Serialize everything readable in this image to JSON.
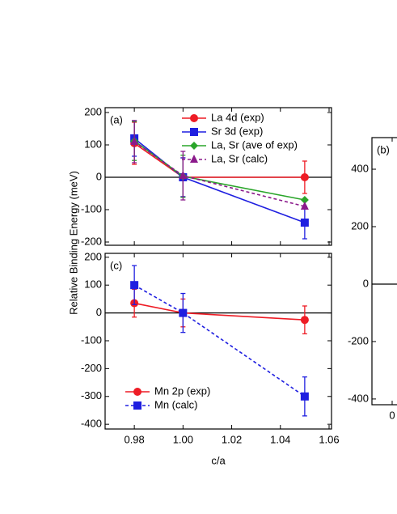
{
  "chart_data": [
    {
      "type": "line",
      "panel_label": "(a)",
      "ylabel": "Relative Binding Energy (meV)",
      "x": [
        0.98,
        1.0,
        1.05
      ],
      "xlim": [
        0.968,
        1.061
      ],
      "ylim": [
        -210,
        215
      ],
      "xticks": [
        0.98,
        1,
        1.02,
        1.04,
        1.06
      ],
      "yticks": [
        200,
        100,
        0,
        -100,
        -200
      ],
      "zero_line": true,
      "legend": "upper right",
      "series": [
        {
          "name": "La 4d (exp)",
          "color": "#ee1c25",
          "marker": "circle",
          "linestyle": "solid",
          "values": [
            105,
            0,
            0
          ],
          "errors": [
            65,
            60,
            50
          ]
        },
        {
          "name": "Sr 3d (exp)",
          "color": "#1f1fe0",
          "marker": "square",
          "linestyle": "solid",
          "values": [
            120,
            0,
            -140
          ],
          "errors": [
            55,
            60,
            50
          ]
        },
        {
          "name": "La, Sr (ave of exp)",
          "color": "#2aa52a",
          "marker": "diamond",
          "linestyle": "solid",
          "values": [
            112,
            3,
            -70
          ],
          "errors": [
            60,
            65,
            null
          ]
        },
        {
          "name": "La, Sr (calc)",
          "color": "#8b1a8b",
          "marker": "triangle",
          "linestyle": "dashed",
          "values": [
            110,
            5,
            -90
          ],
          "errors": [
            65,
            75,
            null
          ]
        }
      ]
    },
    {
      "type": "line",
      "panel_label": "(c)",
      "xlabel": "c/a",
      "x": [
        0.98,
        1.0,
        1.05
      ],
      "xlim": [
        0.968,
        1.061
      ],
      "ylim": [
        -417,
        214
      ],
      "xticks": [
        0.98,
        {
          "value": 1,
          "label": "1.00"
        },
        1.02,
        1.04,
        1.06
      ],
      "yticks": [
        200,
        100,
        0,
        -100,
        -200,
        -300,
        -400
      ],
      "zero_line": true,
      "legend": "lower left",
      "series": [
        {
          "name": "Mn 2p (exp)",
          "color": "#ee1c25",
          "marker": "circle",
          "linestyle": "solid",
          "values": [
            35,
            0,
            -25
          ],
          "errors": [
            50,
            50,
            50
          ]
        },
        {
          "name": "Mn (calc)",
          "color": "#1f1fe0",
          "marker": "square",
          "linestyle": "dashed",
          "values": [
            100,
            0,
            -300
          ],
          "errors": [
            70,
            70,
            70
          ]
        }
      ]
    },
    {
      "type": "line",
      "panel_label": "(b)",
      "x": [],
      "xlim": [
        -1,
        3
      ],
      "ylim": [
        -420,
        510
      ],
      "xticks": [
        0
      ],
      "yticks": [
        400,
        200,
        0,
        -200,
        -400
      ],
      "zero_line": true,
      "series": []
    }
  ]
}
